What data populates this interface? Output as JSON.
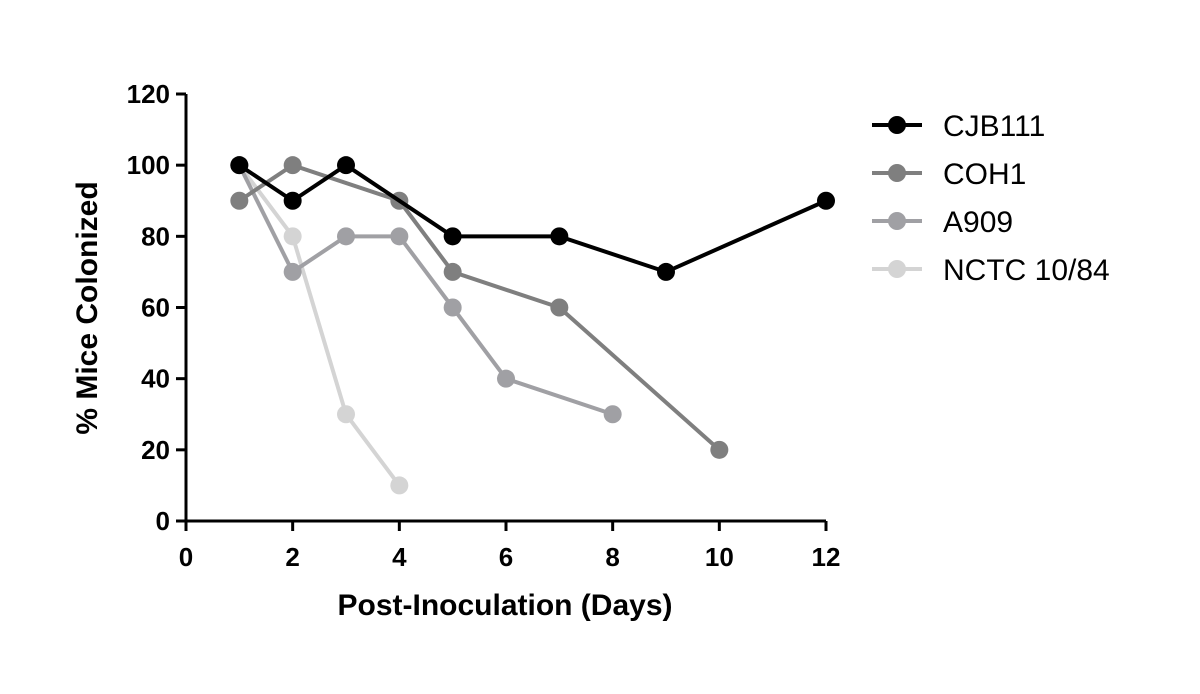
{
  "chart_data": {
    "type": "line",
    "title": "",
    "xlabel": "Post-Inoculation (Days)",
    "ylabel": "% Mice Colonized",
    "xlim": [
      0,
      12
    ],
    "ylim": [
      0,
      120
    ],
    "xticks": [
      0,
      2,
      4,
      6,
      8,
      10,
      12
    ],
    "yticks": [
      0,
      20,
      40,
      60,
      80,
      100,
      120
    ],
    "grid": false,
    "legend_position": "right",
    "series": [
      {
        "name": "CJB111",
        "color": "#000000",
        "x": [
          1,
          2,
          3,
          5,
          7,
          9,
          12
        ],
        "y": [
          100,
          90,
          100,
          80,
          80,
          70,
          90
        ]
      },
      {
        "name": "COH1",
        "color": "#7f7f7f",
        "x": [
          1,
          2,
          4,
          5,
          7,
          10
        ],
        "y": [
          90,
          100,
          90,
          70,
          60,
          20
        ]
      },
      {
        "name": "A909",
        "color": "#a0a0a4",
        "x": [
          1,
          2,
          3,
          4,
          5,
          6,
          8
        ],
        "y": [
          100,
          70,
          80,
          80,
          60,
          40,
          30
        ]
      },
      {
        "name": "NCTC 10/84",
        "color": "#d4d4d4",
        "x": [
          1,
          2,
          3,
          4
        ],
        "y": [
          100,
          80,
          30,
          10
        ]
      }
    ]
  }
}
